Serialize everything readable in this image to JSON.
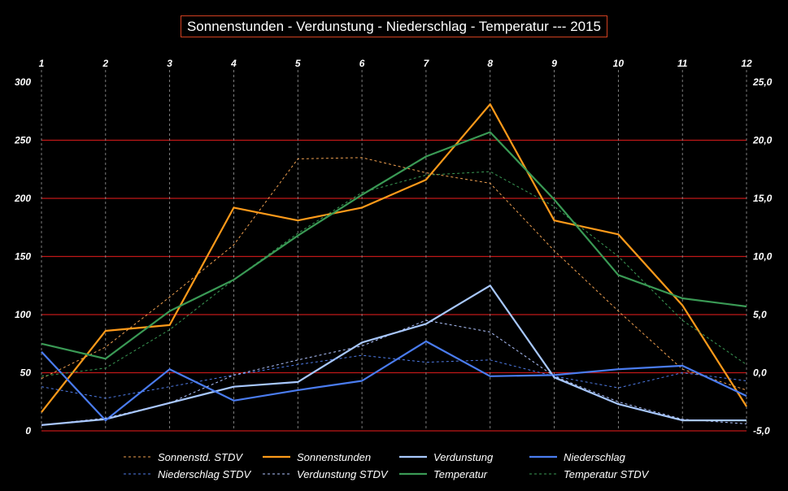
{
  "title": "Sonnenstunden - Verdunstung - Niederschlag - Temperatur ---  2015",
  "chart_data": {
    "type": "line",
    "title": "Sonnenstunden - Verdunstung - Niederschlag - Temperatur ---  2015",
    "x": [
      1,
      2,
      3,
      4,
      5,
      6,
      7,
      8,
      9,
      10,
      11,
      12
    ],
    "x_tick_labels": [
      "1",
      "2",
      "3",
      "4",
      "5",
      "6",
      "7",
      "8",
      "9",
      "10",
      "11",
      "12"
    ],
    "y_left": {
      "ylim": [
        0,
        300
      ],
      "ticks": [
        0,
        50,
        100,
        150,
        200,
        250,
        300
      ],
      "tick_labels": [
        "0",
        "50",
        "100",
        "150",
        "200",
        "250",
        "300"
      ]
    },
    "y_right": {
      "ylim": [
        -5,
        25
      ],
      "ticks": [
        -5,
        0,
        5,
        10,
        15,
        20,
        25
      ],
      "tick_labels": [
        "-5,0",
        "0,0",
        "5,0",
        "10,0",
        "15,0",
        "20,0",
        "25,0"
      ]
    },
    "grid": {
      "horizontal": "red",
      "vertical": "dashed-gray"
    },
    "legend_position": "bottom",
    "series": [
      {
        "name": "Sonnenstd. STDV",
        "axis": "left",
        "color": "#f0a050",
        "dashed": true,
        "values": [
          45,
          72,
          115,
          160,
          234,
          235,
          222,
          213,
          155,
          103,
          53,
          35
        ]
      },
      {
        "name": "Sonnenstunden",
        "axis": "left",
        "color": "#ff9a1a",
        "dashed": false,
        "values": [
          16,
          86,
          91,
          192,
          181,
          192,
          216,
          281,
          181,
          169,
          108,
          21
        ]
      },
      {
        "name": "Verdunstung",
        "axis": "left",
        "color": "#a8c8ff",
        "dashed": false,
        "values": [
          5,
          10,
          24,
          38,
          42,
          76,
          92,
          125,
          46,
          23,
          9,
          9
        ]
      },
      {
        "name": "Niederschlag",
        "axis": "left",
        "color": "#4a7cf0",
        "dashed": false,
        "values": [
          68,
          9,
          53,
          26,
          35,
          43,
          77,
          47,
          48,
          53,
          56,
          30
        ]
      },
      {
        "name": "Niederschlag STDV",
        "axis": "left",
        "color": "#4f7ce8",
        "dashed": true,
        "values": [
          38,
          28,
          38,
          48,
          57,
          65,
          59,
          61,
          47,
          37,
          50,
          43
        ]
      },
      {
        "name": "Verdunstung STDV",
        "axis": "left",
        "color": "#b0c4ff",
        "dashed": true,
        "values": [
          5,
          11,
          24,
          48,
          61,
          73,
          95,
          85,
          47,
          25,
          10,
          6
        ]
      },
      {
        "name": "Temperatur",
        "axis": "right",
        "color": "#3a9a55",
        "dashed": false,
        "values": [
          2.5,
          1.2,
          5.3,
          8.0,
          11.8,
          15.3,
          18.6,
          20.7,
          14.9,
          8.4,
          6.4,
          5.7
        ]
      },
      {
        "name": "Temperatur STDV",
        "axis": "right",
        "color": "#3a9a55",
        "dashed": true,
        "values": [
          -0.3,
          0.4,
          3.7,
          8.0,
          12.0,
          15.5,
          17.0,
          17.3,
          14.3,
          10.0,
          4.5,
          0.7
        ]
      }
    ]
  }
}
